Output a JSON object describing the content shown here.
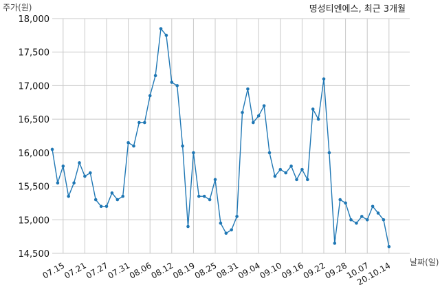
{
  "chart_data": {
    "type": "line",
    "title": "명성티엔에스, 최근 3개월",
    "xlabel": "날짜(일)",
    "ylabel": "주가(원)",
    "ylim": [
      14500,
      18000
    ],
    "yticks": [
      14500,
      15000,
      15500,
      16000,
      16500,
      17000,
      17500,
      18000
    ],
    "ytick_labels": [
      "14,500",
      "15,000",
      "15,500",
      "16,000",
      "16,500",
      "17,000",
      "17,500",
      "18,000"
    ],
    "xtick_labels": [
      "07.15",
      "07.21",
      "07.27",
      "07.31",
      "08.06",
      "08.12",
      "08.19",
      "08.25",
      "08.31",
      "09.04",
      "09.10",
      "09.16",
      "09.22",
      "09.28",
      "10.07",
      "20.10.14"
    ],
    "xtick_positions": [
      2,
      6,
      10,
      14,
      18,
      22,
      26,
      30,
      34,
      38,
      42,
      46,
      50,
      54,
      58,
      62
    ],
    "grid": true,
    "color": "#1f77b4",
    "series": [
      {
        "values": [
          16050,
          15550,
          15800,
          15350,
          15550,
          15850,
          15650,
          15700,
          15300,
          15200,
          15200,
          15400,
          15300,
          15350,
          16150,
          16100,
          16450,
          16450,
          16850,
          17150,
          17850,
          17750,
          17050,
          17000,
          16100,
          14900,
          16000,
          15350,
          15350,
          15300,
          15600,
          14950,
          14800,
          14850,
          15050,
          16600,
          16950,
          16450,
          16550,
          16700,
          16000,
          15650,
          15750,
          15700,
          15800,
          15600,
          15750,
          15600,
          16650,
          16500,
          17100,
          16000,
          14650,
          15300,
          15250,
          15000,
          14950,
          15050,
          15000,
          15200,
          15100,
          15000,
          14600
        ]
      }
    ]
  }
}
